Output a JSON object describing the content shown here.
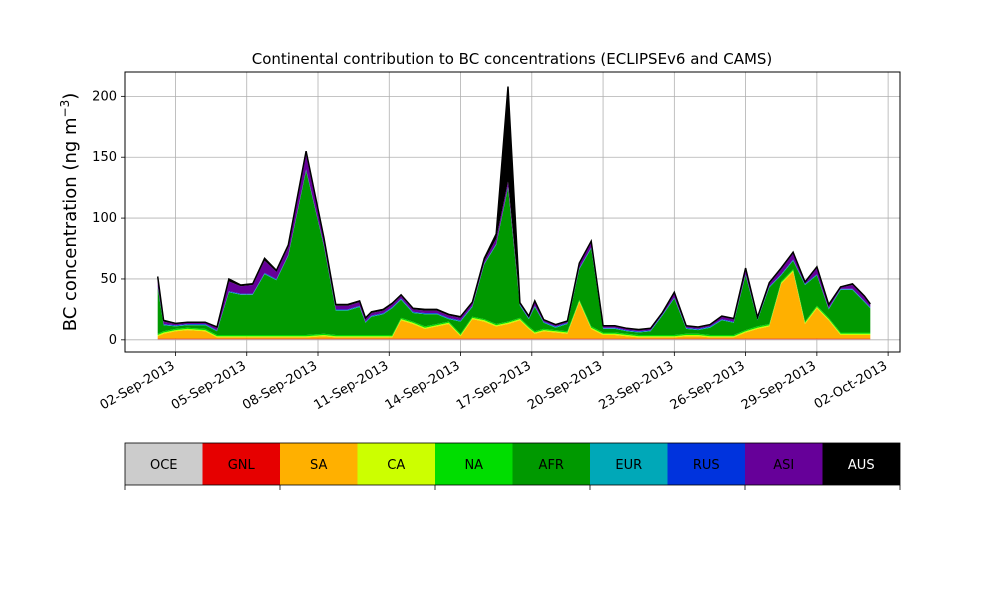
{
  "chart_data": {
    "type": "area",
    "stacked": true,
    "title": "Continental contribution to BC concentrations (ECLIPSEv6 and CAMS)",
    "ylabel": "BC concentration (ng m",
    "ylabel_sup": "−3",
    "ylabel_close": ")",
    "xlabel": "",
    "xlim": [
      "2013-08-30T21:00",
      "2013-10-02T12:00"
    ],
    "ylim": [
      -10,
      220
    ],
    "grid": true,
    "yticks": [
      0,
      50,
      100,
      150,
      200
    ],
    "xticks": [
      {
        "date": "2013-09-02",
        "label": "02-Sep-2013"
      },
      {
        "date": "2013-09-05",
        "label": "05-Sep-2013"
      },
      {
        "date": "2013-09-08",
        "label": "08-Sep-2013"
      },
      {
        "date": "2013-09-11",
        "label": "11-Sep-2013"
      },
      {
        "date": "2013-09-14",
        "label": "14-Sep-2013"
      },
      {
        "date": "2013-09-17",
        "label": "17-Sep-2013"
      },
      {
        "date": "2013-09-20",
        "label": "20-Sep-2013"
      },
      {
        "date": "2013-09-23",
        "label": "23-Sep-2013"
      },
      {
        "date": "2013-09-26",
        "label": "26-Sep-2013"
      },
      {
        "date": "2013-09-29",
        "label": "29-Sep-2013"
      },
      {
        "date": "2013-10-02",
        "label": "02-Oct-2013"
      }
    ],
    "series": [
      {
        "name": "OCE",
        "color": "#cccccc"
      },
      {
        "name": "GNL",
        "color": "#e60000"
      },
      {
        "name": "SA",
        "color": "#ffb000"
      },
      {
        "name": "CA",
        "color": "#ccff00"
      },
      {
        "name": "NA",
        "color": "#00dd00"
      },
      {
        "name": "AFR",
        "color": "#009900"
      },
      {
        "name": "EUR",
        "color": "#00a8b8"
      },
      {
        "name": "RUS",
        "color": "#0033dd"
      },
      {
        "name": "ASI",
        "color": "#660099"
      },
      {
        "name": "AUS",
        "color": "#000000"
      }
    ],
    "x": [
      "2013-09-01T06:00",
      "2013-09-01T12:00",
      "2013-09-02T00:00",
      "2013-09-02T12:00",
      "2013-09-03T06:00",
      "2013-09-03T18:00",
      "2013-09-04T06:00",
      "2013-09-04T18:00",
      "2013-09-05T06:00",
      "2013-09-05T18:00",
      "2013-09-06T06:00",
      "2013-09-06T18:00",
      "2013-09-07T12:00",
      "2013-09-08T06:00",
      "2013-09-08T18:00",
      "2013-09-09T06:00",
      "2013-09-09T18:00",
      "2013-09-10T00:00",
      "2013-09-10T06:00",
      "2013-09-10T18:00",
      "2013-09-11T03:00",
      "2013-09-11T12:00",
      "2013-09-12T00:00",
      "2013-09-12T12:00",
      "2013-09-13T00:00",
      "2013-09-13T12:00",
      "2013-09-14T00:00",
      "2013-09-14T12:00",
      "2013-09-15T00:00",
      "2013-09-15T12:00",
      "2013-09-16T00:00",
      "2013-09-16T12:00",
      "2013-09-16T21:00",
      "2013-09-17T03:00",
      "2013-09-17T12:00",
      "2013-09-18T00:00",
      "2013-09-18T12:00",
      "2013-09-19T00:00",
      "2013-09-19T12:00",
      "2013-09-20T00:00",
      "2013-09-20T12:00",
      "2013-09-21T00:00",
      "2013-09-21T12:00",
      "2013-09-22T00:00",
      "2013-09-22T12:00",
      "2013-09-23T00:00",
      "2013-09-23T12:00",
      "2013-09-24T00:00",
      "2013-09-24T12:00",
      "2013-09-25T00:00",
      "2013-09-25T12:00",
      "2013-09-26T00:00",
      "2013-09-26T12:00",
      "2013-09-27T00:00",
      "2013-09-27T12:00",
      "2013-09-28T00:00",
      "2013-09-28T12:00",
      "2013-09-29T00:00",
      "2013-09-29T12:00",
      "2013-09-30T00:00",
      "2013-09-30T12:00",
      "2013-10-01T00:00",
      "2013-10-01T06:00"
    ],
    "values": {
      "OCE": [
        0.5,
        0.5,
        0.5,
        0.5,
        0.5,
        0.5,
        0.5,
        0.5,
        0.5,
        0.5,
        0.5,
        0.5,
        0.5,
        0.5,
        0.5,
        0.5,
        0.5,
        0.5,
        0.5,
        0.5,
        0.5,
        0.5,
        0.5,
        0.5,
        0.5,
        0.5,
        0.5,
        0.5,
        0.5,
        0.5,
        0.5,
        0.5,
        0.5,
        0.5,
        0.5,
        0.5,
        0.5,
        0.5,
        0.5,
        0.5,
        0.5,
        0.5,
        0.5,
        0.5,
        0.5,
        0.5,
        0.5,
        0.5,
        0.5,
        0.5,
        0.5,
        0.5,
        0.5,
        0.5,
        0.5,
        0.5,
        0.5,
        0.5,
        0.5,
        0.5,
        0.5,
        0.5,
        0.5
      ],
      "GNL": [
        0.5,
        0.5,
        0.5,
        0.5,
        0.5,
        0.5,
        0.5,
        0.5,
        0.5,
        0.5,
        0.5,
        0.5,
        0.5,
        0.5,
        0.5,
        0.5,
        0.5,
        0.5,
        0.5,
        0.5,
        0.5,
        0.5,
        0.5,
        0.5,
        0.5,
        0.5,
        0.5,
        0.5,
        0.5,
        0.5,
        0.5,
        0.5,
        0.5,
        0.5,
        0.5,
        0.5,
        0.5,
        0.5,
        0.5,
        0.5,
        0.5,
        0.5,
        0.5,
        0.5,
        0.5,
        0.5,
        0.5,
        0.5,
        0.5,
        0.5,
        0.5,
        0.5,
        0.5,
        0.5,
        0.5,
        0.5,
        0.5,
        0.5,
        0.5,
        0.5,
        0.5,
        0.5,
        0.5
      ],
      "SA": [
        2,
        4,
        6,
        7,
        6,
        1,
        1,
        1,
        1,
        1,
        1,
        1,
        1,
        2,
        1,
        1,
        1,
        1,
        1,
        1,
        1,
        15,
        12,
        8,
        10,
        12,
        2,
        16,
        14,
        10,
        12,
        15,
        8,
        4,
        6,
        5,
        4,
        30,
        8,
        3,
        3,
        2,
        1,
        1,
        1,
        1,
        2,
        2,
        1,
        1,
        1,
        5,
        8,
        10,
        45,
        55,
        12,
        25,
        15,
        3,
        3,
        3,
        3
      ],
      "CA": [
        1,
        1,
        1,
        1,
        1,
        1,
        1,
        1,
        1,
        1,
        1,
        1,
        1,
        1,
        1,
        1,
        1,
        1,
        1,
        1,
        1,
        1,
        1,
        1,
        1,
        1,
        1,
        1,
        1,
        1,
        1,
        1,
        1,
        1,
        1,
        1,
        1,
        1,
        1,
        1,
        1,
        1,
        1,
        1,
        1,
        1,
        1,
        1,
        1,
        1,
        1,
        1,
        1,
        1,
        1,
        1,
        1,
        1,
        1,
        1,
        1,
        1,
        1
      ],
      "NA": [
        1,
        1,
        1,
        1,
        1,
        1,
        1,
        1,
        1,
        1,
        1,
        1,
        1,
        1,
        1,
        1,
        1,
        1,
        1,
        1,
        1,
        1,
        1,
        1,
        1,
        1,
        1,
        1,
        1,
        1,
        1,
        1,
        1,
        1,
        1,
        1,
        1,
        1,
        1,
        1,
        1,
        1,
        1,
        1,
        1,
        1,
        1,
        1,
        1,
        1,
        1,
        1,
        1,
        1,
        1,
        1,
        1,
        1,
        1,
        1,
        1,
        1,
        1
      ],
      "AFR": [
        38,
        5,
        2,
        2,
        3,
        3,
        35,
        33,
        33,
        50,
        45,
        65,
        135,
        72,
        20,
        20,
        23,
        10,
        15,
        17,
        22,
        15,
        7,
        10,
        8,
        2,
        10,
        8,
        45,
        65,
        110,
        10,
        6,
        20,
        5,
        2,
        6,
        25,
        64,
        3,
        3,
        2,
        2,
        3,
        16,
        30,
        4,
        3,
        6,
        12,
        10,
        45,
        5,
        30,
        5,
        7,
        30,
        25,
        7,
        35,
        35,
        25,
        20
      ],
      "EUR": [
        0.5,
        0.5,
        0.5,
        0.5,
        0.5,
        0.5,
        0.5,
        0.5,
        0.5,
        0.5,
        0.5,
        0.5,
        0.5,
        0.5,
        0.5,
        0.5,
        0.5,
        0.5,
        0.5,
        0.5,
        0.5,
        0.5,
        0.5,
        0.5,
        0.5,
        0.5,
        0.5,
        0.5,
        0.5,
        0.5,
        0.5,
        0.5,
        0.5,
        0.5,
        0.5,
        0.5,
        0.5,
        0.5,
        0.5,
        0.5,
        0.5,
        0.5,
        0.5,
        0.5,
        0.5,
        0.5,
        0.5,
        0.5,
        0.5,
        0.5,
        0.5,
        0.5,
        0.5,
        0.5,
        0.5,
        0.5,
        0.5,
        0.5,
        0.5,
        0.5,
        0.5,
        0.5,
        0.5
      ],
      "RUS": [
        0.5,
        0.5,
        0.5,
        0.5,
        0.5,
        0.5,
        0.5,
        0.5,
        0.5,
        0.5,
        0.5,
        0.5,
        0.5,
        0.5,
        0.5,
        0.5,
        0.5,
        0.5,
        0.5,
        0.5,
        0.5,
        0.5,
        0.5,
        0.5,
        0.5,
        0.5,
        0.5,
        0.5,
        0.5,
        0.5,
        0.5,
        0.5,
        0.5,
        0.5,
        0.5,
        0.5,
        0.5,
        0.5,
        0.5,
        0.5,
        0.5,
        0.5,
        0.5,
        0.5,
        0.5,
        0.5,
        0.5,
        0.5,
        0.5,
        0.5,
        0.5,
        0.5,
        0.5,
        0.5,
        0.5,
        0.5,
        0.5,
        0.5,
        0.5,
        0.5,
        0.5,
        0.5,
        0.5
      ],
      "ASI": [
        6,
        2,
        1,
        1,
        1,
        2,
        8,
        6,
        7,
        10,
        6,
        6,
        12,
        5,
        3,
        3,
        3,
        2,
        2,
        2,
        2,
        2,
        2,
        2,
        2,
        2,
        2,
        2,
        2,
        4,
        4,
        1,
        1,
        3,
        1,
        1,
        1,
        3,
        4,
        1,
        1,
        1,
        1,
        1,
        1,
        3,
        1,
        1,
        1,
        2,
        2,
        4,
        1,
        2,
        4,
        5,
        1,
        5,
        2,
        1,
        3,
        3,
        2
      ],
      "AUS": [
        2,
        1,
        0.5,
        0.5,
        0.5,
        0.5,
        2,
        1,
        1,
        2,
        1,
        2,
        3,
        1,
        1,
        1,
        1,
        1,
        1,
        1,
        1,
        1,
        1,
        1,
        1,
        1,
        1,
        1,
        2,
        4,
        78,
        0.5,
        0.5,
        1,
        0.5,
        0.5,
        0.5,
        1,
        1,
        0.5,
        0.5,
        0.5,
        0.5,
        0.5,
        0.5,
        1,
        0.5,
        0.5,
        0.5,
        0.5,
        0.5,
        1,
        0.5,
        1,
        1,
        1,
        0.5,
        1,
        1,
        0.5,
        1,
        1,
        0.5
      ]
    }
  }
}
